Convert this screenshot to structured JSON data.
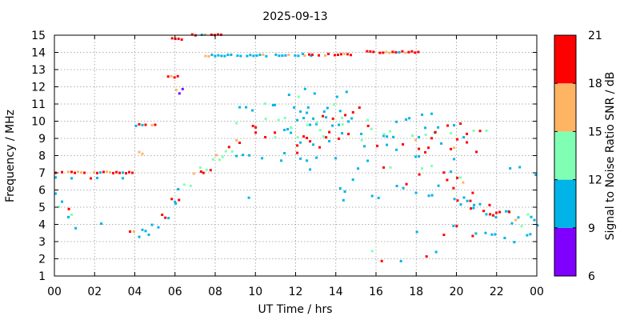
{
  "chart_data": {
    "type": "heatmap",
    "title": "2025-09-13",
    "xlabel": "UT Time / hrs",
    "ylabel": "Frequency / MHz",
    "xlim": [
      0,
      24
    ],
    "ylim": [
      1,
      15
    ],
    "x_ticks": [
      "00",
      "02",
      "04",
      "06",
      "08",
      "10",
      "12",
      "14",
      "16",
      "18",
      "20",
      "22",
      "00"
    ],
    "y_ticks": [
      "1",
      "2",
      "3",
      "4",
      "5",
      "6",
      "7",
      "8",
      "9",
      "10",
      "11",
      "12",
      "13",
      "14",
      "15"
    ],
    "grid": true,
    "colorbar": {
      "label": "Signal to Noise Ratio SNR / dB",
      "range": [
        6,
        21
      ],
      "ticks": [
        "6",
        "9",
        "12",
        "15",
        "18",
        "21"
      ],
      "bands": [
        {
          "from": 6,
          "to": 9,
          "color": "#8000ff"
        },
        {
          "from": 9,
          "to": 12,
          "color": "#00b4e8"
        },
        {
          "from": 12,
          "to": 15,
          "color": "#80ffb4"
        },
        {
          "from": 15,
          "to": 18,
          "color": "#ffb464"
        },
        {
          "from": 18,
          "to": 21,
          "color": "#ff0000"
        }
      ]
    },
    "traces": [
      {
        "x0": 0.0,
        "x1": 3.9,
        "y0": 6.95,
        "y1": 6.95,
        "snr": 20,
        "density": 0.85,
        "spread": 0.05
      },
      {
        "x0": 0.0,
        "x1": 3.9,
        "y0": 6.6,
        "y1": 6.6,
        "snr": 10,
        "density": 0.25,
        "spread": 0.1
      },
      {
        "x0": 0.0,
        "x1": 1.0,
        "y0": 5.2,
        "y1": 4.0,
        "snr": 10,
        "density": 0.6,
        "spread": 0.6
      },
      {
        "x0": 0.5,
        "x1": 0.7,
        "y0": 5.0,
        "y1": 4.6,
        "snr": 20,
        "density": 0.8,
        "spread": 0.2
      },
      {
        "x0": 1.0,
        "x1": 3.8,
        "y0": 4.2,
        "y1": 3.4,
        "snr": 10,
        "density": 0.15,
        "spread": 1.0
      },
      {
        "x0": 3.9,
        "x1": 4.0,
        "y0": 3.5,
        "y1": 2.4,
        "snr": 19,
        "density": 0.9,
        "spread": 0.3
      },
      {
        "x0": 4.0,
        "x1": 5.3,
        "y0": 3.1,
        "y1": 4.1,
        "snr": 10,
        "density": 0.5,
        "spread": 0.35
      },
      {
        "x0": 4.0,
        "x1": 5.0,
        "y0": 9.7,
        "y1": 9.7,
        "snr": 20,
        "density": 0.6,
        "spread": 0.05
      },
      {
        "x0": 4.0,
        "x1": 5.6,
        "y0": 7.8,
        "y1": 9.0,
        "snr": 16,
        "density": 0.2,
        "spread": 0.4
      },
      {
        "x0": 5.3,
        "x1": 6.4,
        "y0": 4.1,
        "y1": 6.2,
        "snr": 11,
        "density": 0.7,
        "spread": 0.45
      },
      {
        "x0": 5.5,
        "x1": 6.2,
        "y0": 4.6,
        "y1": 5.3,
        "snr": 19,
        "density": 0.6,
        "spread": 0.2
      },
      {
        "x0": 6.4,
        "x1": 8.9,
        "y0": 6.2,
        "y1": 8.6,
        "snr": 13,
        "density": 0.8,
        "spread": 0.35
      },
      {
        "x0": 6.6,
        "x1": 7.8,
        "y0": 6.4,
        "y1": 7.3,
        "snr": 20,
        "density": 0.45,
        "spread": 0.2
      },
      {
        "x0": 5.6,
        "x1": 6.1,
        "y0": 12.5,
        "y1": 12.5,
        "snr": 20,
        "density": 0.9,
        "spread": 0.05
      },
      {
        "x0": 5.8,
        "x1": 6.4,
        "y0": 14.7,
        "y1": 14.7,
        "snr": 19,
        "density": 0.9,
        "spread": 0.05
      },
      {
        "x0": 6.8,
        "x1": 8.3,
        "y0": 14.95,
        "y1": 14.95,
        "snr": 20,
        "density": 0.9,
        "spread": 0.03
      },
      {
        "x0": 6.0,
        "x1": 6.6,
        "y0": 11.6,
        "y1": 11.9,
        "snr": 17,
        "density": 0.6,
        "spread": 0.15
      },
      {
        "x0": 7.3,
        "x1": 13.0,
        "y0": 13.75,
        "y1": 13.75,
        "snr": 11,
        "density": 0.7,
        "spread": 0.05
      },
      {
        "x0": 12.3,
        "x1": 14.7,
        "y0": 13.8,
        "y1": 13.8,
        "snr": 20,
        "density": 0.7,
        "spread": 0.05
      },
      {
        "x0": 15.5,
        "x1": 18.1,
        "y0": 13.95,
        "y1": 13.95,
        "snr": 20,
        "density": 0.9,
        "spread": 0.05
      },
      {
        "x0": 9.0,
        "x1": 21.0,
        "y0": 9.0,
        "y1": 8.4,
        "snr": 19,
        "density": 0.55,
        "spread": 0.5
      },
      {
        "x0": 9.0,
        "x1": 20.5,
        "y0": 10.4,
        "y1": 9.5,
        "snr": 10,
        "density": 0.6,
        "spread": 0.8
      },
      {
        "x0": 10.5,
        "x1": 16.5,
        "y0": 11.3,
        "y1": 11.0,
        "snr": 10,
        "density": 0.5,
        "spread": 0.7
      },
      {
        "x0": 9.0,
        "x1": 20.5,
        "y0": 7.9,
        "y1": 7.2,
        "snr": 10,
        "density": 0.4,
        "spread": 0.6
      },
      {
        "x0": 9.5,
        "x1": 19.0,
        "y0": 9.6,
        "y1": 9.2,
        "snr": 13,
        "density": 0.3,
        "spread": 0.7
      },
      {
        "x0": 16.5,
        "x1": 20.5,
        "y0": 6.8,
        "y1": 5.5,
        "snr": 10,
        "density": 0.5,
        "spread": 0.6
      },
      {
        "x0": 19.0,
        "x1": 21.0,
        "y0": 6.8,
        "y1": 5.6,
        "snr": 20,
        "density": 0.3,
        "spread": 0.4
      },
      {
        "x0": 20.0,
        "x1": 24.0,
        "y0": 5.2,
        "y1": 4.0,
        "snr": 10,
        "density": 0.7,
        "spread": 0.45
      },
      {
        "x0": 20.5,
        "x1": 23.5,
        "y0": 4.9,
        "y1": 4.3,
        "snr": 20,
        "density": 0.5,
        "spread": 0.25
      },
      {
        "x0": 19.0,
        "x1": 24.0,
        "y0": 3.6,
        "y1": 3.0,
        "snr": 10,
        "density": 0.35,
        "spread": 0.35
      },
      {
        "x0": 14.0,
        "x1": 20.0,
        "y0": 5.0,
        "y1": 4.5,
        "snr": 10,
        "density": 0.2,
        "spread": 1.6
      },
      {
        "x0": 14.0,
        "x1": 20.0,
        "y0": 2.2,
        "y1": 2.0,
        "snr": 10,
        "density": 0.12,
        "spread": 0.8
      },
      {
        "x0": 21.5,
        "x1": 24.0,
        "y0": 7.3,
        "y1": 7.0,
        "snr": 10,
        "density": 0.35,
        "spread": 0.2
      },
      {
        "x0": 20.8,
        "x1": 21.6,
        "y0": 9.4,
        "y1": 9.4,
        "snr": 14,
        "density": 0.5,
        "spread": 0.05
      },
      {
        "x0": 8.5,
        "x1": 17.0,
        "y0": 4.5,
        "y1": 4.0,
        "snr": 10,
        "density": 0.05,
        "spread": 2.0
      }
    ]
  }
}
